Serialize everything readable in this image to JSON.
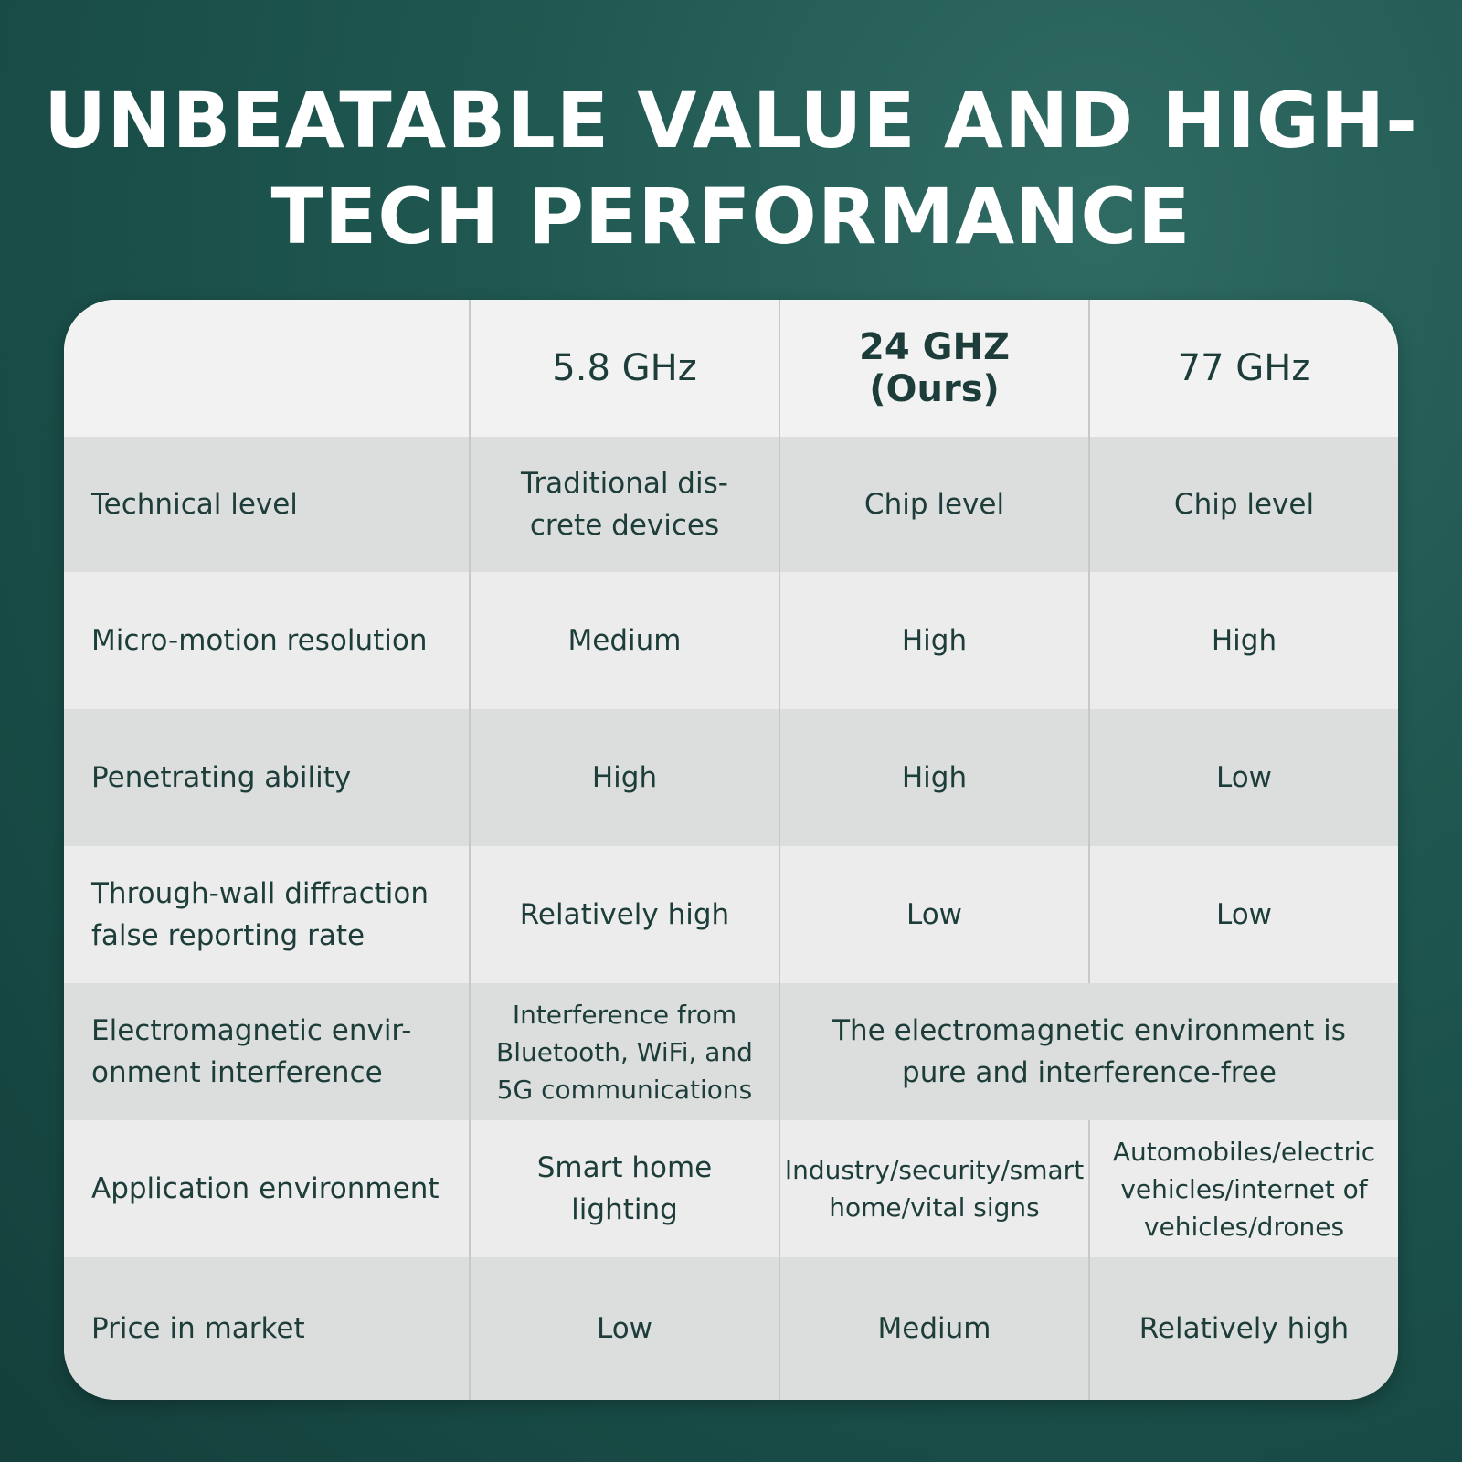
{
  "title": "UNBEATABLE VALUE AND HIGH-TECH PERFORMANCE",
  "columns": [
    "",
    "5.8 GHz",
    "24 GHZ (Ours)",
    "77 GHz"
  ],
  "rows": [
    {
      "label": "Technical level",
      "values": [
        "Traditional dis-crete devices",
        "Chip level",
        "Chip level"
      ]
    },
    {
      "label": "Micro-motion resolution",
      "values": [
        "Medium",
        "High",
        "High"
      ]
    },
    {
      "label": "Penetrating ability",
      "values": [
        "High",
        "High",
        "Low"
      ]
    },
    {
      "label": "Through-wall diffraction false reporting rate",
      "values": [
        "Relatively high",
        "Low",
        "Low"
      ]
    },
    {
      "label": "Electromagnetic envir-onment interference",
      "values": [
        "Interference from Bluetooth, WiFi, and 5G communications",
        "The electromagnetic environment is pure and interference-free"
      ]
    },
    {
      "label": "Application environment",
      "values": [
        "Smart home lighting",
        "Industry/security/smart home/vital signs",
        "Automobiles/electric vehicles/internet of vehicles/drones"
      ]
    },
    {
      "label": "Price in market",
      "values": [
        "Low",
        "Medium",
        "Relatively high"
      ]
    }
  ],
  "colors": {
    "background": "#1f5750",
    "title": "#ffffff",
    "text": "#1d3d3a",
    "row_alt": "#dcdedd",
    "row_plain": "#ececec"
  }
}
